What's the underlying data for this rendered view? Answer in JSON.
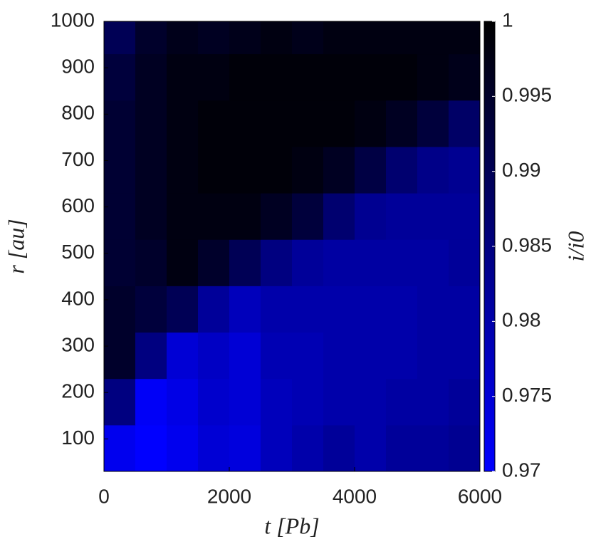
{
  "chart_data": {
    "type": "heatmap",
    "xlabel": "t [Pb]",
    "ylabel": "r [au]",
    "colorbar_label": "i/i0",
    "x": [
      250,
      750,
      1250,
      1750,
      2250,
      2750,
      3250,
      3750,
      4250,
      4750,
      5250,
      5750
    ],
    "y": [
      80,
      180,
      280,
      380,
      480,
      580,
      680,
      780,
      880,
      980
    ],
    "z": [
      [
        0.972,
        0.97,
        0.972,
        0.975,
        0.974,
        0.978,
        0.98,
        0.982,
        0.98,
        0.982,
        0.982,
        0.983
      ],
      [
        0.985,
        0.971,
        0.973,
        0.976,
        0.975,
        0.978,
        0.979,
        0.98,
        0.98,
        0.981,
        0.981,
        0.982
      ],
      [
        0.995,
        0.985,
        0.975,
        0.977,
        0.975,
        0.979,
        0.979,
        0.98,
        0.98,
        0.98,
        0.981,
        0.981
      ],
      [
        0.995,
        0.993,
        0.99,
        0.982,
        0.978,
        0.98,
        0.98,
        0.98,
        0.98,
        0.98,
        0.981,
        0.981
      ],
      [
        0.994,
        0.995,
        0.998,
        0.995,
        0.99,
        0.985,
        0.982,
        0.981,
        0.981,
        0.981,
        0.981,
        0.982
      ],
      [
        0.994,
        0.996,
        0.998,
        0.998,
        0.998,
        0.996,
        0.993,
        0.987,
        0.983,
        0.982,
        0.982,
        0.982
      ],
      [
        0.994,
        0.996,
        0.998,
        0.999,
        0.999,
        0.999,
        0.998,
        0.996,
        0.992,
        0.987,
        0.984,
        0.983
      ],
      [
        0.994,
        0.996,
        0.998,
        0.999,
        0.999,
        0.999,
        0.999,
        0.999,
        0.998,
        0.996,
        0.993,
        0.988
      ],
      [
        0.993,
        0.996,
        0.998,
        0.998,
        0.999,
        0.999,
        0.999,
        0.999,
        0.999,
        0.999,
        0.998,
        0.997
      ],
      [
        0.99,
        0.995,
        0.997,
        0.996,
        0.997,
        0.998,
        0.997,
        0.998,
        0.998,
        0.998,
        0.998,
        0.998
      ]
    ],
    "xlim": [
      0,
      6000
    ],
    "xticks": [
      0,
      2000,
      4000,
      6000
    ],
    "ylim": [
      30,
      1000
    ],
    "yticks": [
      100,
      200,
      300,
      400,
      500,
      600,
      700,
      800,
      900,
      1000
    ],
    "clim": [
      0.97,
      1
    ],
    "cticks": [
      0.97,
      0.975,
      0.98,
      0.985,
      0.99,
      0.995,
      1
    ],
    "colormap": [
      "#0000ff",
      "#000000"
    ]
  }
}
